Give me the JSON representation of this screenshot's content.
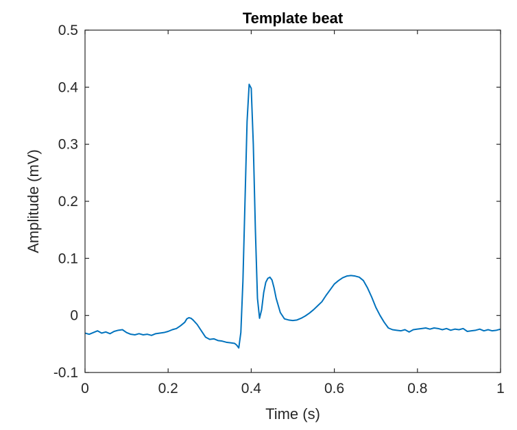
{
  "chart_data": {
    "type": "line",
    "title": "Template beat",
    "xlabel": "Time (s)",
    "ylabel": "Amplitude (mV)",
    "xlim": [
      0,
      1
    ],
    "ylim": [
      -0.1,
      0.5
    ],
    "xticks": [
      0,
      0.2,
      0.4,
      0.6,
      0.8,
      1
    ],
    "xtick_labels": [
      "0",
      "0.2",
      "0.4",
      "0.6",
      "0.8",
      "1"
    ],
    "yticks": [
      -0.1,
      0,
      0.1,
      0.2,
      0.3,
      0.4,
      0.5
    ],
    "ytick_labels": [
      "-0.1",
      "0",
      "0.1",
      "0.2",
      "0.3",
      "0.4",
      "0.5"
    ],
    "grid": false,
    "legend": "none",
    "color": "#0072BD",
    "series": [
      {
        "x": [
          0,
          0.01,
          0.02,
          0.03,
          0.04,
          0.05,
          0.06,
          0.07,
          0.08,
          0.09,
          0.1,
          0.11,
          0.12,
          0.13,
          0.14,
          0.15,
          0.16,
          0.17,
          0.18,
          0.19,
          0.2,
          0.21,
          0.22,
          0.23,
          0.24,
          0.245,
          0.25,
          0.255,
          0.26,
          0.27,
          0.28,
          0.29,
          0.3,
          0.31,
          0.32,
          0.33,
          0.34,
          0.35,
          0.36,
          0.365,
          0.37,
          0.375,
          0.38,
          0.385,
          0.39,
          0.395,
          0.4,
          0.405,
          0.41,
          0.415,
          0.42,
          0.425,
          0.43,
          0.435,
          0.44,
          0.445,
          0.45,
          0.455,
          0.46,
          0.47,
          0.48,
          0.49,
          0.5,
          0.51,
          0.52,
          0.53,
          0.54,
          0.55,
          0.56,
          0.57,
          0.58,
          0.59,
          0.6,
          0.61,
          0.62,
          0.63,
          0.64,
          0.65,
          0.66,
          0.67,
          0.68,
          0.69,
          0.7,
          0.71,
          0.72,
          0.73,
          0.74,
          0.75,
          0.76,
          0.77,
          0.78,
          0.79,
          0.8,
          0.81,
          0.82,
          0.83,
          0.84,
          0.85,
          0.86,
          0.87,
          0.88,
          0.89,
          0.9,
          0.91,
          0.92,
          0.93,
          0.94,
          0.95,
          0.96,
          0.97,
          0.98,
          0.99,
          1
        ],
        "y": [
          -0.031,
          -0.033,
          -0.03,
          -0.027,
          -0.031,
          -0.029,
          -0.032,
          -0.028,
          -0.026,
          -0.025,
          -0.03,
          -0.033,
          -0.034,
          -0.032,
          -0.034,
          -0.033,
          -0.035,
          -0.032,
          -0.031,
          -0.03,
          -0.028,
          -0.025,
          -0.023,
          -0.018,
          -0.012,
          -0.006,
          -0.004,
          -0.005,
          -0.008,
          -0.016,
          -0.027,
          -0.038,
          -0.042,
          -0.041,
          -0.044,
          -0.045,
          -0.047,
          -0.048,
          -0.049,
          -0.052,
          -0.057,
          -0.03,
          0.06,
          0.2,
          0.34,
          0.405,
          0.398,
          0.3,
          0.15,
          0.03,
          -0.005,
          0.01,
          0.04,
          0.058,
          0.065,
          0.067,
          0.062,
          0.048,
          0.03,
          0.005,
          -0.006,
          -0.008,
          -0.009,
          -0.008,
          -0.005,
          -0.001,
          0.004,
          0.01,
          0.017,
          0.024,
          0.035,
          0.045,
          0.055,
          0.061,
          0.066,
          0.069,
          0.07,
          0.069,
          0.067,
          0.061,
          0.048,
          0.032,
          0.014,
          0,
          -0.012,
          -0.022,
          -0.025,
          -0.026,
          -0.027,
          -0.025,
          -0.029,
          -0.025,
          -0.024,
          -0.023,
          -0.022,
          -0.024,
          -0.022,
          -0.023,
          -0.025,
          -0.023,
          -0.026,
          -0.024,
          -0.025,
          -0.023,
          -0.028,
          -0.027,
          -0.026,
          -0.024,
          -0.027,
          -0.025,
          -0.027,
          -0.026,
          -0.024
        ]
      }
    ]
  }
}
